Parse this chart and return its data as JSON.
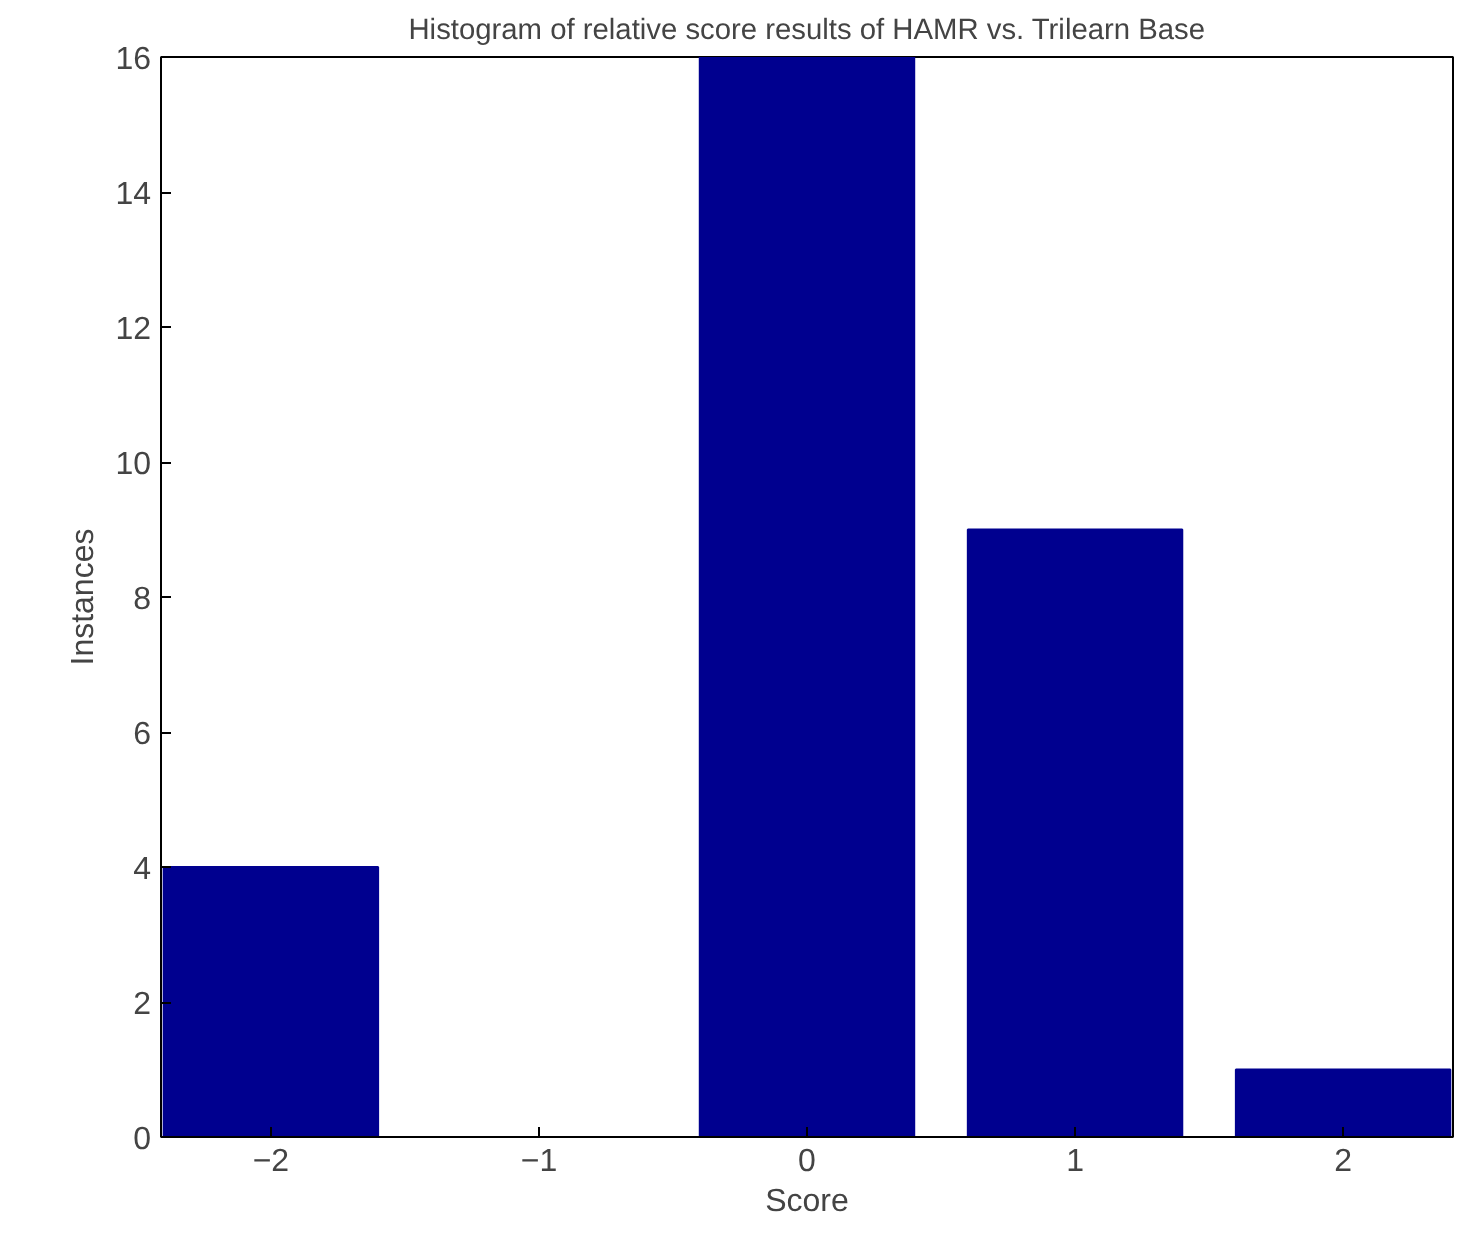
{
  "chart_data": {
    "type": "bar",
    "title": "Histogram of relative score results of HAMR vs. Trilearn Base",
    "xlabel": "Score",
    "ylabel": "Instances",
    "x": [
      -2,
      -1,
      0,
      1,
      2
    ],
    "values": [
      4,
      0,
      16,
      9,
      1
    ],
    "color": "#00008f",
    "xlim": [
      -2.41,
      2.41
    ],
    "xticks": [
      {
        "value": -2,
        "label": "−2"
      },
      {
        "value": -1,
        "label": "−1"
      },
      0,
      1,
      2
    ],
    "ylim": [
      0,
      16
    ],
    "yticks": [
      0,
      2,
      4,
      6,
      8,
      10,
      12,
      14,
      16
    ],
    "grid": false
  }
}
